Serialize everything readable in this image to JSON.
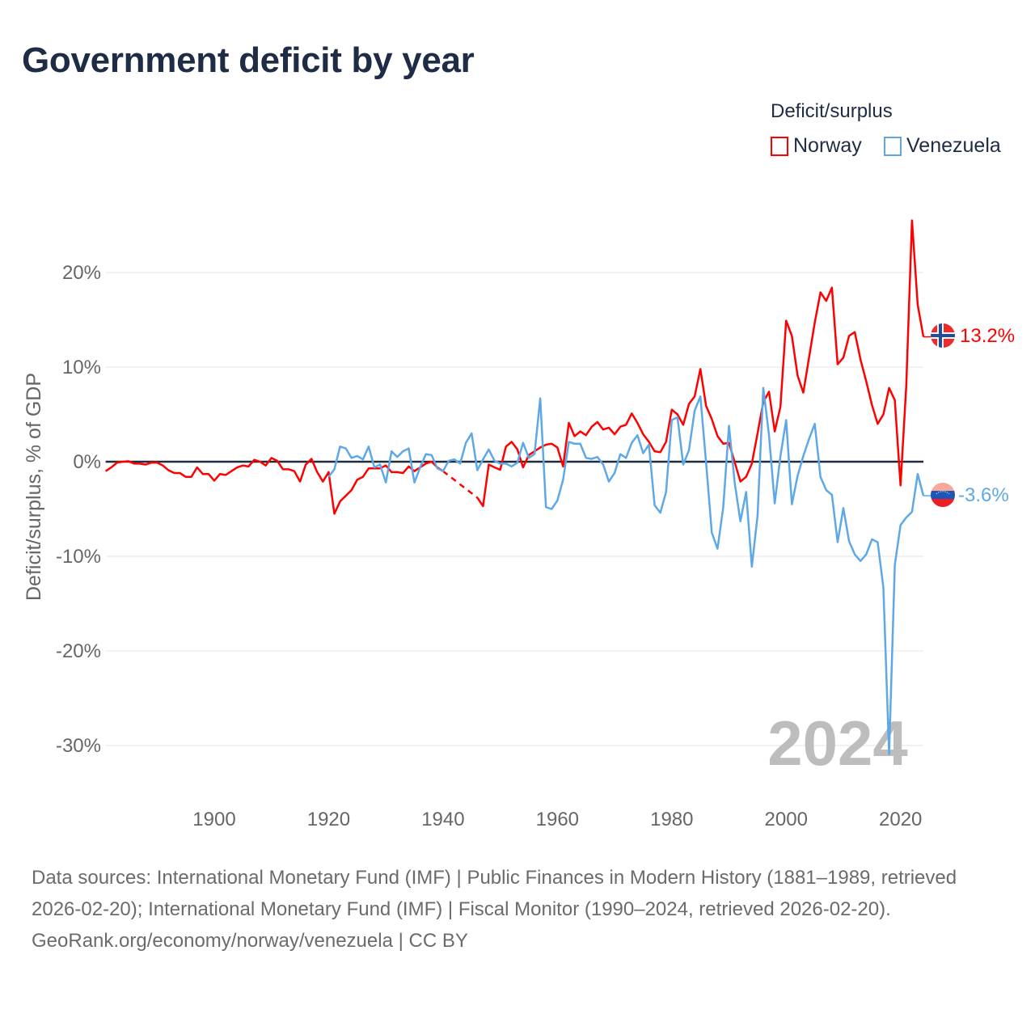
{
  "title": "Government deficit by year",
  "legend": {
    "title": "Deficit/surplus",
    "items": [
      {
        "label": "Norway",
        "color": "#ff0000"
      },
      {
        "label": "Venezuela",
        "color": "#5ea8e8"
      }
    ]
  },
  "year_label": "2024",
  "end_labels": {
    "norway": "13.2%",
    "venezuela": "-3.6%"
  },
  "footer": {
    "sources": "Data sources: International Monetary Fund (IMF) | Public Finances in Modern History (1881–1989, retrieved 2026-02-20); International Monetary Fund (IMF) | Fiscal Monitor (1990–2024, retrieved 2026-02-20).",
    "credit": "GeoRank.org/economy/norway/venezuela | CC BY"
  },
  "chart_data": {
    "type": "line",
    "title": "Government deficit by year",
    "xlabel": "",
    "ylabel": "Deficit/surplus, % of GDP",
    "xlim": [
      1881,
      2024
    ],
    "ylim": [
      -30,
      20
    ],
    "grid": true,
    "legend_position": "top-right",
    "xticks": [
      {
        "value": 1900,
        "label": "1900"
      },
      {
        "value": 1920,
        "label": "1920"
      },
      {
        "value": 1940,
        "label": "1940"
      },
      {
        "value": 1960,
        "label": "1960"
      },
      {
        "value": 1980,
        "label": "1980"
      },
      {
        "value": 2000,
        "label": "2000"
      },
      {
        "value": 2020,
        "label": "2020"
      }
    ],
    "yticks": [
      {
        "value": 20,
        "label": "20%"
      },
      {
        "value": 10,
        "label": "10%"
      },
      {
        "value": 0,
        "label": "0%"
      },
      {
        "value": -10,
        "label": "-10%"
      },
      {
        "value": -20,
        "label": "-20%"
      },
      {
        "value": -30,
        "label": "-30%"
      }
    ],
    "series": [
      {
        "name": "Norway",
        "color": "#ff0000",
        "start_year": 1881,
        "values": [
          -1.0,
          -0.6,
          -0.1,
          0,
          0.05,
          -0.2,
          -0.2,
          -0.3,
          -0.1,
          -0.1,
          -0.4,
          -0.9,
          -1.2,
          -1.2,
          -1.6,
          -1.6,
          -0.6,
          -1.3,
          -1.3,
          -2.0,
          -1.3,
          -1.4,
          -1.0,
          -0.6,
          -0.4,
          -0.5,
          0.2,
          0,
          -0.4,
          0.4,
          0.1,
          -0.8,
          -0.8,
          -1.0,
          -2.1,
          -0.3,
          0.3,
          -1.1,
          -2.1,
          -1.1,
          -5.5,
          -4.2,
          -3.6,
          -3.0,
          -1.9,
          -1.6,
          -0.7,
          -0.7,
          -0.7,
          -0.4,
          -1.1,
          -1.1,
          -1.2,
          -0.5,
          -1.0,
          -0.6,
          -0.2,
          0,
          -0.6,
          -1.0,
          null,
          null,
          null,
          null,
          null,
          -3.8,
          -4.7,
          -0.3,
          -0.6,
          -0.85,
          1.6,
          2.1,
          1.3,
          -0.6,
          0.7,
          1.1,
          1.5,
          1.8,
          1.9,
          1.5,
          -0.5,
          4.1,
          2.7,
          3.2,
          2.8,
          3.7,
          4.2,
          3.4,
          3.6,
          2.9,
          3.7,
          3.9,
          5.1,
          4.1,
          2.9,
          2.1,
          1.1,
          1.0,
          2.1,
          5.5,
          5.0,
          3.9,
          6.1,
          6.9,
          9.8,
          5.9,
          4.5,
          2.7,
          1.9,
          2.0,
          -0.05,
          -2.1,
          -1.6,
          -0.2,
          3.0,
          6.3,
          7.4,
          3.2,
          5.8,
          14.9,
          13.3,
          9.1,
          7.3,
          11.0,
          14.7,
          17.9,
          17.0,
          18.4,
          10.3,
          11.0,
          13.3,
          13.7,
          10.8,
          8.5,
          6.0,
          4.0,
          5.0,
          7.8,
          6.5,
          -2.5,
          8.0,
          25.5,
          16.6,
          13.2
        ]
      },
      {
        "name": "Venezuela",
        "color": "#5ea8e8",
        "start_year": 1920,
        "values": [
          -1.6,
          -0.8,
          1.6,
          1.4,
          0.4,
          0.6,
          0.25,
          1.6,
          -0.6,
          -0.3,
          -2.2,
          1.1,
          0.5,
          1.1,
          1.4,
          -2.2,
          -0.6,
          0.8,
          0.7,
          -0.7,
          -1.0,
          0.1,
          0.25,
          -0.2,
          2.0,
          3.0,
          -0.9,
          0.25,
          1.3,
          0.1,
          -0.2,
          -0.2,
          -0.5,
          -0.1,
          2.0,
          0.4,
          0.8,
          6.7,
          -4.8,
          -5.0,
          -4.1,
          -1.9,
          2.1,
          1.9,
          1.9,
          0.4,
          0.3,
          0.5,
          -0.3,
          -2.1,
          -1.2,
          0.8,
          0.4,
          2.0,
          2.8,
          0.9,
          1.8,
          -4.6,
          -5.4,
          -3.2,
          4.4,
          4.7,
          -0.3,
          1.2,
          5.4,
          6.9,
          -0.1,
          -7.5,
          -9.2,
          -4.8,
          3.8,
          -2.2,
          -6.3,
          -3.2,
          -11.1,
          -5.7,
          7.8,
          2.8,
          -4.4,
          0.6,
          4.4,
          -4.5,
          -1.5,
          0.6,
          2.4,
          4.0,
          -1.6,
          -3.0,
          -3.5,
          -8.5,
          -4.9,
          -8.4,
          -9.8,
          -10.5,
          -9.8,
          -8.2,
          -8.5,
          -13.3,
          -30.9,
          -10.9,
          -6.7,
          -5.9,
          -5.3,
          -1.3,
          -3.6
        ]
      }
    ]
  }
}
